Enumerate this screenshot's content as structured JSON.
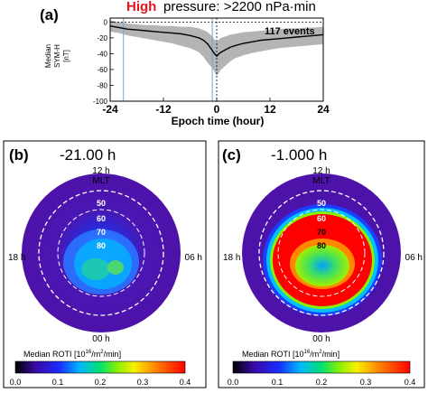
{
  "figure": {
    "panel_a": {
      "label": "(a)",
      "title_high": "High",
      "title_rest": " pressure: >2200 nPa·min",
      "title_high_color": "#e8121c",
      "events": "117 events",
      "ylabel_lines": [
        "Median",
        "SYM-H",
        "[nT]"
      ],
      "xlabel": "Epoch time (hour)",
      "xticks": [
        "-24",
        "-12",
        "0",
        "12",
        "24"
      ],
      "yticks": [
        "0",
        "-20",
        "-40",
        "-60",
        "-80",
        "-100"
      ]
    },
    "panel_b": {
      "label": "(b)",
      "time": "-21.00 h"
    },
    "panel_c": {
      "label": "(c)",
      "time": "-1.000 h"
    },
    "polar": {
      "top_labels": [
        "12 h",
        "MLT"
      ],
      "left": "18 h",
      "right": "06 h",
      "bottom": "00 h",
      "rings": [
        "50",
        "60",
        "70",
        "80"
      ]
    },
    "colorbar": {
      "label": "Median ROTI [10",
      "label_sup": "16",
      "label_rest": "/m",
      "label_sup2": "2",
      "label_end": "/min]",
      "ticks": [
        "0.0",
        "0.1",
        "0.2",
        "0.3",
        "0.4"
      ],
      "colors": [
        "#000000",
        "#3a0aa8",
        "#1a2cff",
        "#00b8ff",
        "#00e070",
        "#88f000",
        "#f8f000",
        "#ff8800",
        "#ff0000"
      ]
    }
  },
  "chart_data": {
    "type": "line",
    "title": "High pressure: >2200 nPa·min",
    "xlabel": "Epoch time (hour)",
    "ylabel": "Median SYM-H [nT]",
    "xlim": [
      -24,
      24
    ],
    "ylim": [
      -100,
      5
    ],
    "series": [
      {
        "x": [
          -24,
          -22,
          -20,
          -18,
          -16,
          -14,
          -12,
          -10,
          -8,
          -6,
          -4,
          -3,
          -2,
          -1,
          -0.5,
          0,
          0.5,
          1,
          2,
          3,
          4,
          6,
          8,
          10,
          12,
          14,
          16,
          18,
          20,
          22,
          24
        ],
        "values": [
          -5,
          -7,
          -9,
          -10,
          -11,
          -12,
          -13,
          -14,
          -15,
          -17,
          -20,
          -23,
          -28,
          -36,
          -40,
          -43,
          -40,
          -38,
          -35,
          -32,
          -30,
          -27,
          -25,
          -23,
          -22,
          -21,
          -20,
          -19,
          -18,
          -17,
          -16
        ],
        "band_lower": [
          -12,
          -14,
          -17,
          -19,
          -21,
          -23,
          -25,
          -27,
          -30,
          -33,
          -38,
          -44,
          -52,
          -58,
          -63,
          -68,
          -64,
          -60,
          -55,
          -50,
          -46,
          -42,
          -39,
          -37,
          -35,
          -33,
          -32,
          -31,
          -30,
          -29,
          -28
        ],
        "band_upper": [
          2,
          0,
          -2,
          -3,
          -4,
          -4,
          -5,
          -5,
          -6,
          -6,
          -8,
          -10,
          -13,
          -18,
          -22,
          -25,
          -22,
          -20,
          -18,
          -16,
          -15,
          -13,
          -12,
          -11,
          -10,
          -9,
          -8,
          -8,
          -7,
          -7,
          -6
        ]
      }
    ]
  }
}
